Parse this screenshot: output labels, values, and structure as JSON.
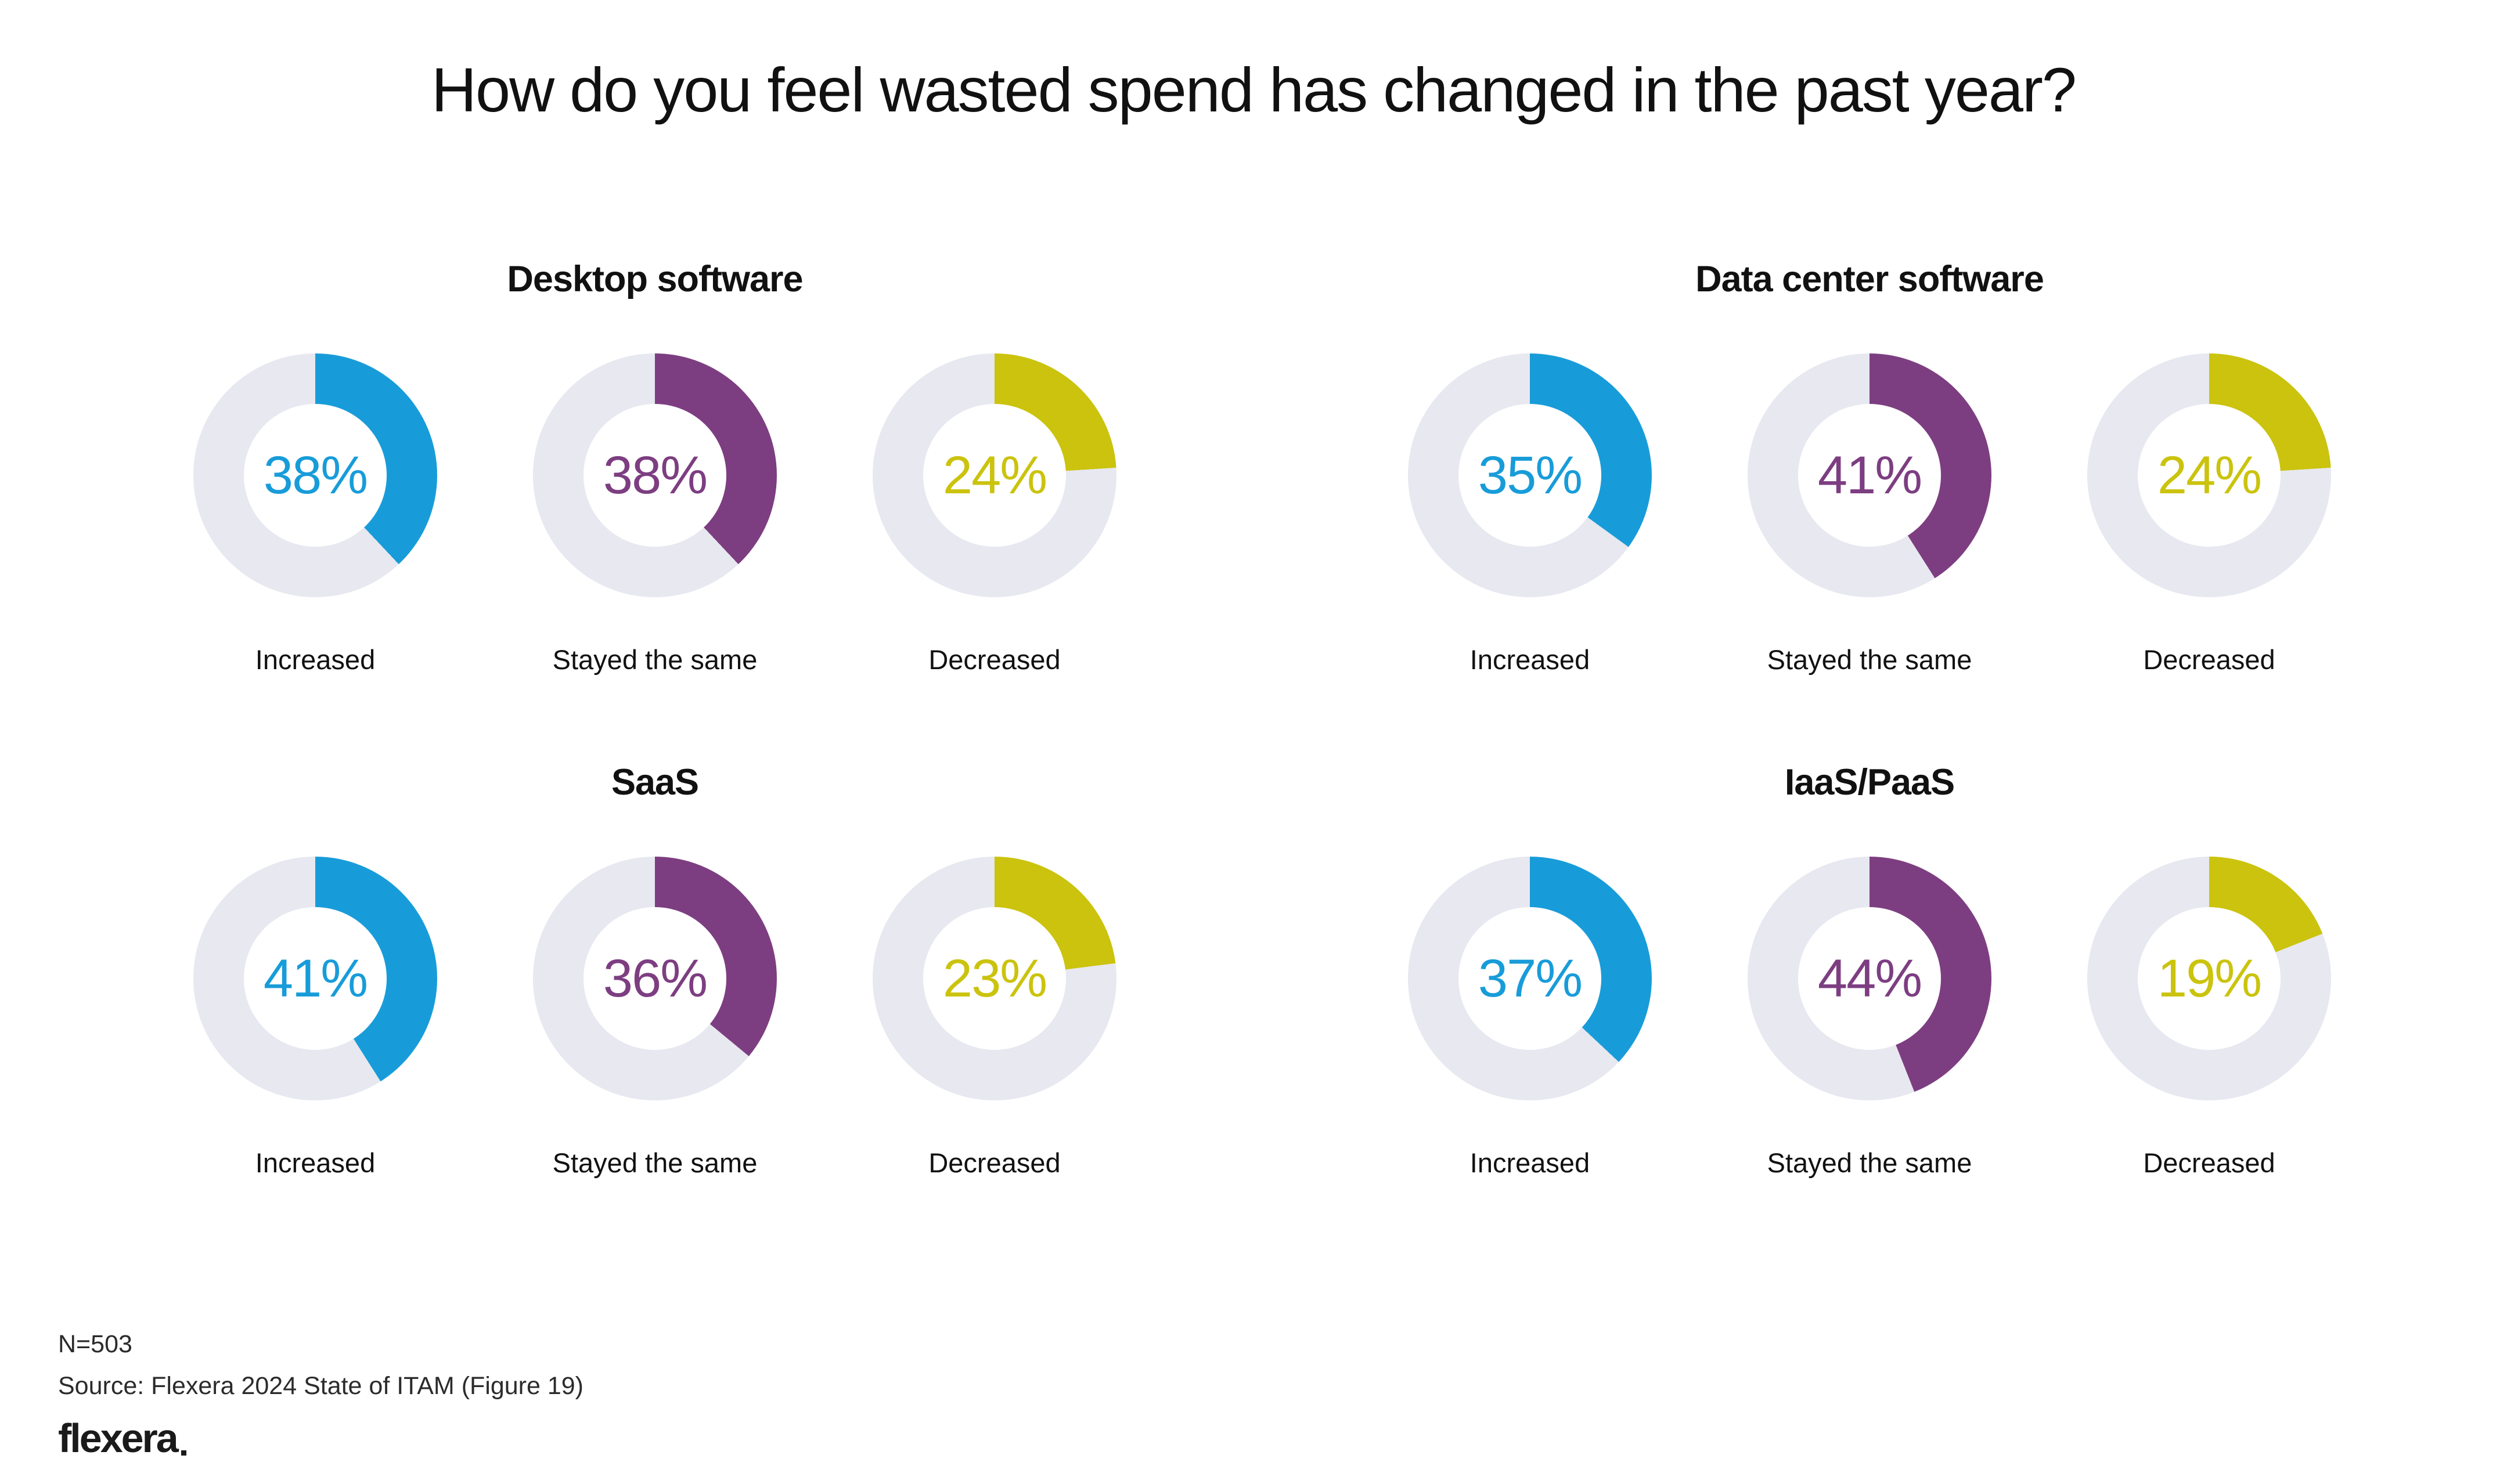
{
  "title": "How do you feel wasted spend has changed in the past year?",
  "chart_data": {
    "type": "pie",
    "variant": "donut-progress",
    "legend_position": "below-each-donut",
    "categories": [
      "Increased",
      "Stayed the same",
      "Decreased"
    ],
    "category_colors": [
      "#189cd9",
      "#7d3e81",
      "#cbc30d"
    ],
    "track_color": "#e7e8f0",
    "value_range": [
      0,
      100
    ],
    "groups": [
      {
        "title": "Desktop software",
        "values": [
          38,
          38,
          24
        ],
        "labels": [
          "38%",
          "38%",
          "24%"
        ]
      },
      {
        "title": "Data center software",
        "values": [
          35,
          41,
          24
        ],
        "labels": [
          "35%",
          "41%",
          "24%"
        ]
      },
      {
        "title": "SaaS",
        "values": [
          41,
          36,
          23
        ],
        "labels": [
          "41%",
          "36%",
          "23%"
        ]
      },
      {
        "title": "IaaS/PaaS",
        "values": [
          37,
          44,
          19
        ],
        "labels": [
          "37%",
          "44%",
          "19%"
        ]
      }
    ]
  },
  "footer": {
    "n_label": "N=503",
    "source": "Source: Flexera 2024 State of ITAM (Figure 19)",
    "brand": "flexera"
  }
}
